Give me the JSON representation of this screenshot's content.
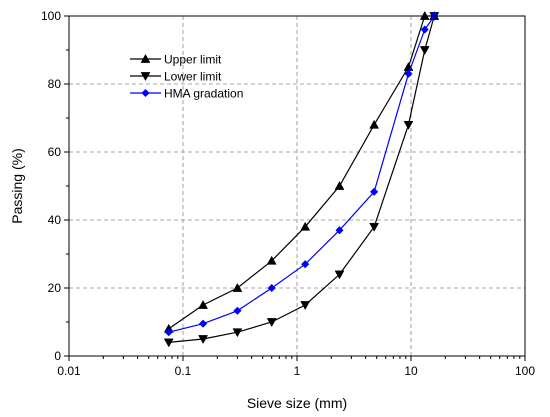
{
  "chart_data": {
    "type": "line",
    "xscale": "log",
    "xlim": [
      0.01,
      100
    ],
    "ylim": [
      0,
      100
    ],
    "xlabel": "Sieve size (mm)",
    "ylabel": "Passing (%)",
    "xticks": [
      {
        "value": 0.01,
        "label": "0.01"
      },
      {
        "value": 0.1,
        "label": "0.1"
      },
      {
        "value": 1,
        "label": "1"
      },
      {
        "value": 10,
        "label": "10"
      },
      {
        "value": 100,
        "label": "100"
      }
    ],
    "yticks": [
      {
        "value": 0,
        "label": "0"
      },
      {
        "value": 20,
        "label": "20"
      },
      {
        "value": 40,
        "label": "40"
      },
      {
        "value": 60,
        "label": "60"
      },
      {
        "value": 80,
        "label": "80"
      },
      {
        "value": 100,
        "label": "100"
      }
    ],
    "grid": true,
    "legend_position": "top-left",
    "x": [
      0.075,
      0.15,
      0.3,
      0.6,
      1.18,
      2.36,
      4.75,
      9.5,
      13.2,
      16
    ],
    "series": [
      {
        "name": "Upper limit",
        "marker": "triangle-up",
        "color": "#000000",
        "values": [
          8,
          15,
          20,
          28,
          38,
          50,
          68,
          85,
          100,
          100
        ]
      },
      {
        "name": "Lower limit",
        "marker": "triangle-down",
        "color": "#000000",
        "values": [
          4,
          5,
          7,
          10,
          15,
          24,
          38,
          68,
          90,
          100
        ]
      },
      {
        "name": "HMA gradation",
        "marker": "diamond",
        "color": "#0000ff",
        "values": [
          7,
          9.5,
          13.3,
          20,
          27,
          37,
          48.3,
          83,
          96,
          100
        ]
      }
    ]
  }
}
